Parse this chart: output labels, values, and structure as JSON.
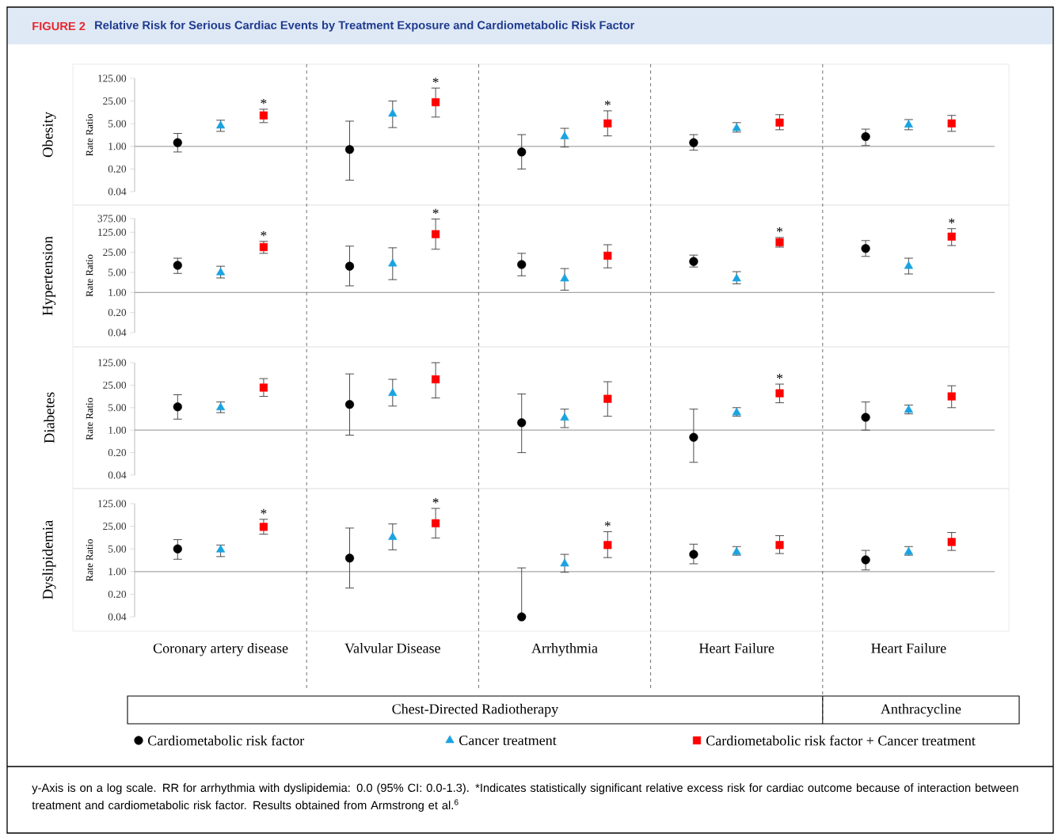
{
  "chart_data": [
    {
      "type": "scatter",
      "title": "Obesity",
      "ylabel": "Rate Ratio",
      "log": "y",
      "tick_labels": "y",
      "annotations": [
        "FIGURE 2",
        "Relative Risk for Serious Cardiac Events by Treatment Exposure and Cardiometabolic Risk Factor"
      ],
      "categories": [
        null,
        null,
        null,
        null,
        null
      ],
      "ylim": [
        0.04,
        125
      ],
      "yticks": [
        {
          "value": 0.04,
          "label": "0.04"
        },
        {
          "value": 0.2,
          "label": "0.20"
        },
        {
          "value": 1,
          "label": "1.00"
        },
        {
          "value": 5,
          "label": "5.00"
        },
        {
          "value": 25,
          "label": "25.00"
        },
        {
          "value": 125,
          "label": "125.00"
        }
      ],
      "ref_lines": [
        {
          "axis": "y",
          "value": 1,
          "color": "#a6a6a6"
        }
      ],
      "series": [
        {
          "color": "#000000",
          "marker": "circle",
          "values": [
            1.3,
            0.8,
            0.67,
            1.3,
            2.0
          ],
          "errors": [
            [
              0.67,
              2.5
            ],
            [
              0.09,
              6.0
            ],
            [
              0.2,
              2.3
            ],
            [
              0.76,
              2.3
            ],
            [
              1.06,
              3.4
            ]
          ]
        },
        {
          "color": "#1aa3e0",
          "marker": "triangle",
          "values": [
            4.3,
            10,
            2.0,
            3.6,
            4.6
          ],
          "errors": [
            [
              2.9,
              6.4
            ],
            [
              3.8,
              25
            ],
            [
              0.95,
              3.6
            ],
            [
              2.75,
              5.4
            ],
            [
              3.25,
              6.7
            ]
          ]
        },
        {
          "color": "#ff0000",
          "marker": "square",
          "values": [
            9,
            23,
            5.1,
            5.4,
            5.1
          ],
          "errors": [
            [
              5.4,
              14
            ],
            [
              8,
              63
            ],
            [
              2.1,
              12.5
            ],
            [
              3.25,
              9.5
            ],
            [
              2.9,
              9
            ]
          ],
          "value_labels": [
            "*",
            "*",
            "*",
            null,
            null
          ]
        }
      ]
    },
    {
      "type": "scatter",
      "title": "Hypertension",
      "ylabel": "Rate Ratio",
      "log": "y",
      "tick_labels": "y",
      "categories": [
        null,
        null,
        null,
        null,
        null
      ],
      "ylim": [
        0.04,
        375
      ],
      "yticks": [
        {
          "value": 0.04,
          "label": "0.04"
        },
        {
          "value": 0.2,
          "label": "0.20"
        },
        {
          "value": 1,
          "label": "1.00"
        },
        {
          "value": 5,
          "label": "5.00"
        },
        {
          "value": 25,
          "label": "25.00"
        },
        {
          "value": 125,
          "label": "125.00"
        },
        {
          "value": 375,
          "label": "375.00"
        }
      ],
      "ref_lines": [
        {
          "axis": "y",
          "value": 1,
          "color": "#a6a6a6"
        }
      ],
      "series": [
        {
          "color": "#000000",
          "marker": "circle",
          "values": [
            8.8,
            8.2,
            9.4,
            12,
            34
          ],
          "errors": [
            [
              4.6,
              15.6
            ],
            [
              1.7,
              41
            ],
            [
              3.8,
              23
            ],
            [
              7.7,
              20
            ],
            [
              18,
              64
            ]
          ]
        },
        {
          "color": "#1aa3e0",
          "marker": "triangle",
          "values": [
            4.9,
            10,
            3.0,
            3.0,
            8.2
          ],
          "errors": [
            [
              3.2,
              8.2
            ],
            [
              2.8,
              36
            ],
            [
              1.2,
              6.8
            ],
            [
              2.0,
              5.3
            ],
            [
              4.4,
              15.6
            ]
          ]
        },
        {
          "color": "#ff0000",
          "marker": "square",
          "values": [
            38,
            107,
            19,
            56,
            88
          ],
          "errors": [
            [
              23,
              60
            ],
            [
              32,
              360
            ],
            [
              7.2,
              46
            ],
            [
              38,
              82
            ],
            [
              43,
              167
            ]
          ],
          "value_labels": [
            "*",
            "*",
            null,
            "*",
            "*"
          ]
        }
      ]
    },
    {
      "type": "scatter",
      "title": "Diabetes",
      "ylabel": "Rate Ratio",
      "log": "y",
      "tick_labels": "y",
      "categories": [
        null,
        null,
        null,
        null,
        null
      ],
      "ylim": [
        0.04,
        125
      ],
      "yticks": [
        {
          "value": 0.04,
          "label": "0.04"
        },
        {
          "value": 0.2,
          "label": "0.20"
        },
        {
          "value": 1,
          "label": "1.00"
        },
        {
          "value": 5,
          "label": "5.00"
        },
        {
          "value": 25,
          "label": "25.00"
        },
        {
          "value": 125,
          "label": "125.00"
        }
      ],
      "ref_lines": [
        {
          "axis": "y",
          "value": 1,
          "color": "#a6a6a6"
        }
      ],
      "series": [
        {
          "color": "#000000",
          "marker": "circle",
          "values": [
            5.3,
            6.3,
            1.7,
            0.6,
            2.5
          ],
          "errors": [
            [
              2.2,
              12.6
            ],
            [
              0.7,
              56
            ],
            [
              0.2,
              13.3
            ],
            [
              0.1,
              4.5
            ],
            [
              1.0,
              7.5
            ]
          ]
        },
        {
          "color": "#1aa3e0",
          "marker": "triangle",
          "values": [
            5.0,
            14,
            2.4,
            3.5,
            4.2
          ],
          "errors": [
            [
              3.5,
              7.5
            ],
            [
              5.6,
              38
            ],
            [
              1.2,
              4.5
            ],
            [
              2.7,
              5.0
            ],
            [
              3.2,
              6.0
            ]
          ]
        },
        {
          "color": "#ff0000",
          "marker": "square",
          "values": [
            21,
            38,
            9.4,
            14,
            11.2
          ],
          "errors": [
            [
              11.2,
              40
            ],
            [
              10,
              125
            ],
            [
              2.7,
              32
            ],
            [
              7.1,
              27
            ],
            [
              5.0,
              24
            ]
          ],
          "value_labels": [
            null,
            null,
            null,
            "*",
            null
          ]
        }
      ]
    },
    {
      "type": "scatter",
      "title": "Dyslipidemia",
      "ylabel": "Rate Ratio",
      "log": "y",
      "legend": "bottom",
      "annotations": [
        "Chest-Directed Radiotherapy",
        "Anthracycline",
        "y-Axis is on a log scale. RR for arrhythmia with dyslipidemia: 0.0 (95% CI: 0.0-1.3). *Indicates statistically significant relative excess risk for cardiac outcome because of interaction between treatment and cardiometabolic risk factor. Results obtained from Armstrong et al.$^{6}$"
      ],
      "categories": [
        "Coronary artery disease",
        "Valvular Disease",
        "Arrhythmia",
        "Heart Failure",
        "Heart Failure"
      ],
      "ylim": [
        0.04,
        125
      ],
      "yticks": [
        {
          "value": 0.04,
          "label": "0.04"
        },
        {
          "value": 0.2,
          "label": "0.20"
        },
        {
          "value": 1,
          "label": "1.00"
        },
        {
          "value": 5,
          "label": "5.00"
        },
        {
          "value": 25,
          "label": "25.00"
        },
        {
          "value": 125,
          "label": "125.00"
        }
      ],
      "ref_lines": [
        {
          "axis": "y",
          "value": 1,
          "color": "#a6a6a6"
        }
      ],
      "series": [
        {
          "name": "Cardiometabolic risk factor",
          "color": "#000000",
          "marker": "circle",
          "values": [
            5.0,
            2.6,
            0.04,
            3.4,
            2.3
          ],
          "errors": [
            [
              2.4,
              9.7
            ],
            [
              0.31,
              22
            ],
            [
              0.04,
              1.3
            ],
            [
              1.74,
              7.0
            ],
            [
              1.12,
              4.5
            ]
          ]
        },
        {
          "name": "Cancer treatment",
          "color": "#1aa3e0",
          "marker": "triangle",
          "values": [
            4.7,
            11.5,
            1.74,
            4.0,
            4.0
          ],
          "errors": [
            [
              2.9,
              6.6
            ],
            [
              4.7,
              29.5
            ],
            [
              0.95,
              3.4
            ],
            [
              3.2,
              5.9
            ],
            [
              3.2,
              5.9
            ]
          ]
        },
        {
          "name": "Cardiometabolic risk factor + Cancer treatment",
          "color": "#ff0000",
          "marker": "square",
          "values": [
            24,
            31,
            6.6,
            6.6,
            8.2
          ],
          "errors": [
            [
              14.3,
              41
            ],
            [
              10.9,
              89
            ],
            [
              2.7,
              17
            ],
            [
              3.6,
              12.8
            ],
            [
              4.5,
              16
            ]
          ],
          "value_labels": [
            "*",
            "*",
            "*",
            null,
            null
          ]
        }
      ]
    }
  ]
}
